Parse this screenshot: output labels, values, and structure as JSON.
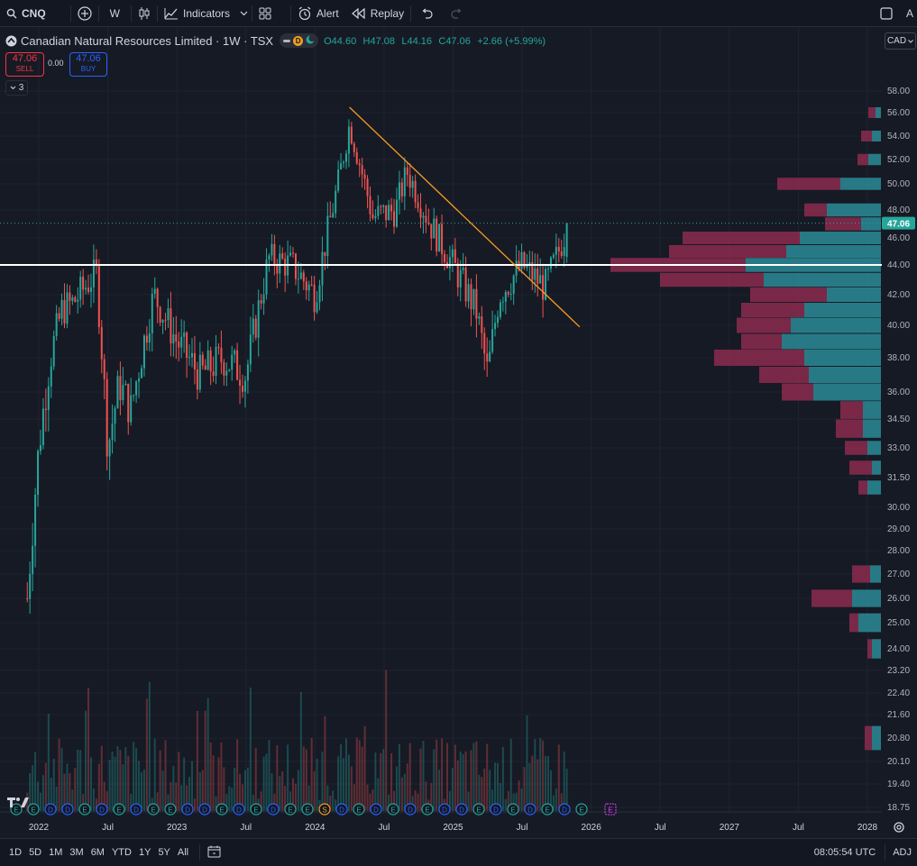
{
  "toolbar": {
    "symbol": "CNQ",
    "interval": "W",
    "indicators_label": "Indicators",
    "alert_label": "Alert",
    "replay_label": "Replay",
    "right_text": "A"
  },
  "legend": {
    "title": "Canadian Natural Resources Limited · 1W · TSX",
    "o": "O44.60",
    "h": "H47.08",
    "l": "L44.16",
    "c": "C47.06",
    "change": "+2.66 (+5.99%)",
    "dot_d": "D",
    "sell_price": "47.06",
    "sell_label": "SELL",
    "spread": "0.00",
    "buy_price": "47.06",
    "buy_label": "BUY",
    "collapse_count": "3"
  },
  "currency": "CAD",
  "colors": {
    "up": "#26a69a",
    "down": "#ef5350",
    "trendline": "#f59b22",
    "price_tag": "#26a69a",
    "vp_up": "#2a8c96",
    "vp_down": "#8c2b4f"
  },
  "chart_data": {
    "type": "candlestick",
    "symbol": "CNQ",
    "exchange": "TSX",
    "interval": "1W",
    "last_price": 47.06,
    "horizontal_line": 44.0,
    "trendline": {
      "from": {
        "x": "2024-04",
        "y": 56.5
      },
      "to": {
        "x": "2025-12",
        "y": 39.9
      }
    },
    "price_points": [
      {
        "x": "2021-12",
        "y": 26.0
      },
      {
        "x": "2022-01",
        "y": 33.0
      },
      {
        "x": "2022-02",
        "y": 38.0
      },
      {
        "x": "2022-03",
        "y": 41.0
      },
      {
        "x": "2022-04",
        "y": 41.5
      },
      {
        "x": "2022-06",
        "y": 43.5
      },
      {
        "x": "2022-07",
        "y": 33.0
      },
      {
        "x": "2022-08",
        "y": 36.5
      },
      {
        "x": "2022-09",
        "y": 35.0
      },
      {
        "x": "2022-11",
        "y": 42.0
      },
      {
        "x": "2023-01",
        "y": 39.0
      },
      {
        "x": "2023-03",
        "y": 37.0
      },
      {
        "x": "2023-05",
        "y": 38.0
      },
      {
        "x": "2023-07",
        "y": 37.0
      },
      {
        "x": "2023-09",
        "y": 44.5
      },
      {
        "x": "2023-11",
        "y": 44.0
      },
      {
        "x": "2024-01",
        "y": 42.0
      },
      {
        "x": "2024-03",
        "y": 50.0
      },
      {
        "x": "2024-04",
        "y": 55.0
      },
      {
        "x": "2024-06",
        "y": 47.5
      },
      {
        "x": "2024-08",
        "y": 48.0
      },
      {
        "x": "2024-09",
        "y": 51.0
      },
      {
        "x": "2024-11",
        "y": 47.0
      },
      {
        "x": "2025-01",
        "y": 44.0
      },
      {
        "x": "2025-03",
        "y": 41.0
      },
      {
        "x": "2025-04",
        "y": 37.0
      },
      {
        "x": "2025-05",
        "y": 42.0
      },
      {
        "x": "2025-07",
        "y": 44.0
      },
      {
        "x": "2025-09",
        "y": 42.5
      },
      {
        "x": "2025-10",
        "y": 44.6
      },
      {
        "x": "2025-11",
        "y": 47.06
      }
    ],
    "y_ticks": [
      "58.00",
      "56.00",
      "54.00",
      "52.00",
      "50.00",
      "48.00",
      "46.00",
      "44.00",
      "42.00",
      "40.00",
      "38.00",
      "36.00",
      "34.50",
      "33.00",
      "31.50",
      "30.00",
      "29.00",
      "28.00",
      "27.00",
      "26.00",
      "25.00",
      "24.00",
      "23.20",
      "22.40",
      "21.60",
      "20.80",
      "20.10",
      "19.40",
      "18.75"
    ],
    "x_ticks": [
      "2022",
      "Jul",
      "2023",
      "Jul",
      "2024",
      "Jul",
      "2025",
      "Jul",
      "2026",
      "Jul",
      "2027",
      "Jul",
      "2028"
    ],
    "events": [
      "E",
      "E",
      "D",
      "D",
      "E",
      "D",
      "E",
      "D",
      "E",
      "E",
      "D",
      "D",
      "E",
      "D",
      "E",
      "D",
      "E",
      "E",
      "S",
      "D",
      "E",
      "D",
      "E",
      "D",
      "E",
      "D",
      "D",
      "E",
      "D",
      "E",
      "D",
      "E",
      "D",
      "E"
    ],
    "volume_profile": [
      {
        "price": 56.0,
        "up": 6,
        "down": 8
      },
      {
        "price": 54.0,
        "up": 10,
        "down": 12
      },
      {
        "price": 52.0,
        "up": 14,
        "down": 12
      },
      {
        "price": 50.0,
        "up": 45,
        "down": 70
      },
      {
        "price": 48.0,
        "up": 60,
        "down": 25
      },
      {
        "price": 47.0,
        "up": 22,
        "down": 40
      },
      {
        "price": 46.0,
        "up": 90,
        "down": 130
      },
      {
        "price": 45.0,
        "up": 105,
        "down": 130
      },
      {
        "price": 44.0,
        "up": 150,
        "down": 150
      },
      {
        "price": 43.0,
        "up": 130,
        "down": 115
      },
      {
        "price": 42.0,
        "up": 60,
        "down": 85
      },
      {
        "price": 41.0,
        "up": 85,
        "down": 70
      },
      {
        "price": 40.0,
        "up": 100,
        "down": 60
      },
      {
        "price": 39.0,
        "up": 110,
        "down": 45
      },
      {
        "price": 38.0,
        "up": 85,
        "down": 100
      },
      {
        "price": 37.0,
        "up": 80,
        "down": 55
      },
      {
        "price": 36.0,
        "up": 75,
        "down": 35
      },
      {
        "price": 35.0,
        "up": 20,
        "down": 25
      },
      {
        "price": 34.0,
        "up": 20,
        "down": 30
      },
      {
        "price": 33.0,
        "up": 15,
        "down": 25
      },
      {
        "price": 32.0,
        "up": 10,
        "down": 25
      },
      {
        "price": 31.0,
        "up": 15,
        "down": 10
      },
      {
        "price": 27.0,
        "up": 12,
        "down": 20
      },
      {
        "price": 26.0,
        "up": 32,
        "down": 45
      },
      {
        "price": 25.0,
        "up": 25,
        "down": 10
      },
      {
        "price": 24.0,
        "up": 10,
        "down": 5
      },
      {
        "price": 20.8,
        "up": 10,
        "down": 8
      }
    ]
  },
  "bottom": {
    "ranges": [
      "1D",
      "5D",
      "1M",
      "3M",
      "6M",
      "YTD",
      "1Y",
      "5Y",
      "All"
    ],
    "time": "08:05:54 UTC",
    "adj": "ADJ"
  }
}
